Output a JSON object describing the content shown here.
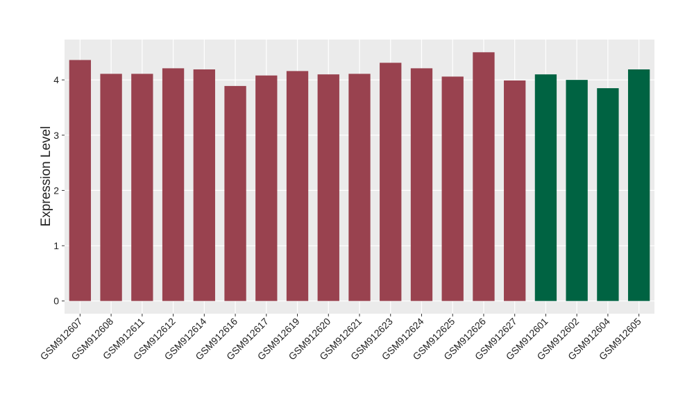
{
  "chart_data": {
    "type": "bar",
    "y_label": "Expression Level",
    "categories": [
      "GSM912607",
      "GSM912608",
      "GSM912611",
      "GSM912612",
      "GSM912614",
      "GSM912616",
      "GSM912617",
      "GSM912619",
      "GSM912620",
      "GSM912621",
      "GSM912623",
      "GSM912624",
      "GSM912625",
      "GSM912626",
      "GSM912627",
      "GSM912601",
      "GSM912602",
      "GSM912604",
      "GSM912605"
    ],
    "values": [
      4.36,
      4.11,
      4.11,
      4.21,
      4.19,
      3.89,
      4.08,
      4.16,
      4.1,
      4.11,
      4.31,
      4.21,
      4.06,
      4.5,
      3.99,
      4.1,
      4.0,
      3.85,
      4.19
    ],
    "colors": [
      "#99424f",
      "#99424f",
      "#99424f",
      "#99424f",
      "#99424f",
      "#99424f",
      "#99424f",
      "#99424f",
      "#99424f",
      "#99424f",
      "#99424f",
      "#99424f",
      "#99424f",
      "#99424f",
      "#99424f",
      "#006342",
      "#006342",
      "#006342",
      "#006342"
    ],
    "ylim": [
      -0.23,
      4.73
    ],
    "yticks": [
      0,
      1,
      2,
      3,
      4
    ],
    "grid": true
  }
}
